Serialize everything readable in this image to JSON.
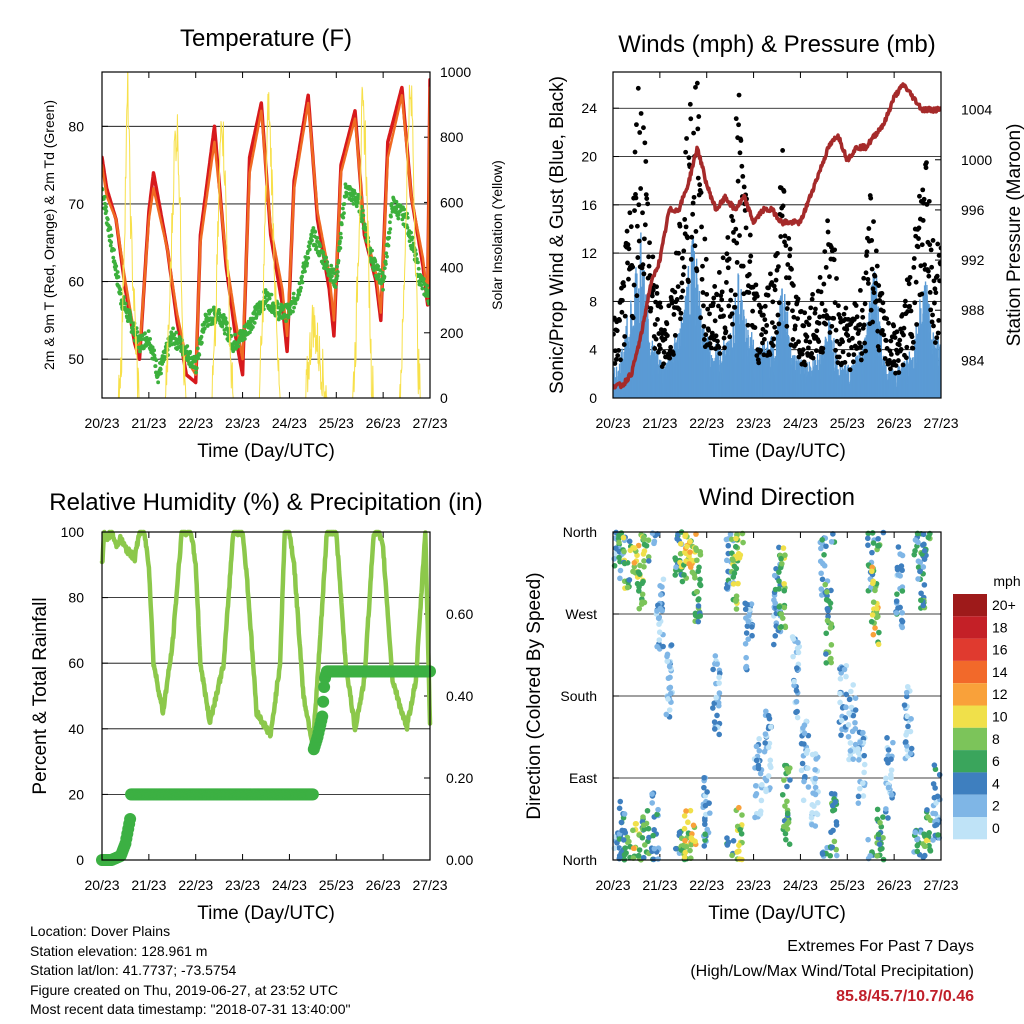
{
  "colors": {
    "red": "#d7191c",
    "orange": "#f06a22",
    "green": "#3cb03c",
    "yellow": "#f7e04a",
    "blue": "#5b9bd5",
    "black": "#000000",
    "maroon": "#a52a2a",
    "rh_green": "#8cc84b",
    "precip_green": "#3cb043",
    "extremes_red": "#c0202a"
  },
  "info": {
    "location": "Location: Dover Plains",
    "elevation": "Station elevation: 128.961 m",
    "latlon": "Station lat/lon: 41.7737; -73.5754",
    "created": "Figure created on Thu, 2019-06-27, at 23:52 UTC",
    "recent": "Most recent data timestamp: \"2018-07-31 13:40:00\""
  },
  "extremes": {
    "title": "Extremes For Past 7 Days",
    "subtitle": "(High/Low/Max Wind/Total Precipitation)",
    "values": "85.8/45.7/10.7/0.46"
  },
  "chart_data": [
    {
      "type": "line",
      "title": "Temperature (F)",
      "xlabel": "Time (Day/UTC)",
      "ylabel": "2m & 9m T (Red, Orange) & 2m Td (Green)",
      "ylabel_right": "Solar Insolation (Yellow)",
      "x_ticks": [
        "20/23",
        "21/23",
        "22/23",
        "23/23",
        "24/23",
        "25/23",
        "26/23",
        "27/23"
      ],
      "xlim": [
        0,
        7
      ],
      "ylim": [
        45,
        87
      ],
      "y_ticks": [
        50,
        60,
        70,
        80
      ],
      "y2lim": [
        0,
        1000
      ],
      "y2_ticks": [
        0,
        200,
        400,
        600,
        800,
        1000
      ],
      "grid": true,
      "series": [
        {
          "name": "2m T",
          "color": "red",
          "x": [
            0,
            0.1,
            0.3,
            0.5,
            0.7,
            0.8,
            1.0,
            1.1,
            1.4,
            1.6,
            1.8,
            2.0,
            2.1,
            2.4,
            2.65,
            2.85,
            3.0,
            3.15,
            3.4,
            3.6,
            3.85,
            3.95,
            4.1,
            4.4,
            4.6,
            4.85,
            4.95,
            5.1,
            5.4,
            5.6,
            5.85,
            5.95,
            6.1,
            6.4,
            6.6,
            6.85,
            6.95,
            7.0
          ],
          "values": [
            76,
            72,
            68,
            59,
            52,
            50,
            69,
            74,
            64,
            55,
            48,
            47,
            66,
            80,
            62,
            53,
            48,
            76,
            83,
            66,
            57,
            51,
            73,
            84,
            68,
            59,
            53,
            75,
            82,
            66,
            60,
            55,
            78,
            85,
            71,
            62,
            57,
            86
          ]
        },
        {
          "name": "9m T",
          "color": "orange",
          "x": [
            0,
            0.1,
            0.3,
            0.5,
            0.7,
            0.8,
            1.0,
            1.1,
            1.4,
            1.6,
            1.8,
            2.0,
            2.1,
            2.4,
            2.65,
            2.85,
            3.0,
            3.15,
            3.4,
            3.6,
            3.85,
            3.95,
            4.1,
            4.4,
            4.6,
            4.85,
            4.95,
            5.1,
            5.4,
            5.6,
            5.85,
            5.95,
            6.1,
            6.4,
            6.6,
            6.85,
            6.95,
            7.0
          ],
          "values": [
            75,
            71,
            68,
            60,
            53,
            51,
            68,
            72,
            64,
            56,
            50,
            48,
            65,
            78,
            63,
            55,
            50,
            74,
            82,
            67,
            59,
            53,
            72,
            83,
            69,
            61,
            55,
            74,
            81,
            67,
            61,
            56,
            76,
            84,
            71,
            63,
            58,
            85
          ]
        },
        {
          "name": "2m Td",
          "color": "green",
          "x": [
            0,
            0.2,
            0.4,
            0.6,
            0.8,
            1.0,
            1.2,
            1.5,
            1.8,
            2.0,
            2.2,
            2.5,
            2.8,
            3.0,
            3.2,
            3.5,
            3.8,
            4.0,
            4.2,
            4.5,
            4.8,
            5.0,
            5.2,
            5.5,
            5.8,
            6.0,
            6.2,
            6.5,
            6.8,
            7.0
          ],
          "values": [
            72,
            65,
            58,
            55,
            52,
            53,
            48,
            53,
            51,
            49,
            55,
            56,
            52,
            53,
            55,
            58,
            56,
            56,
            59,
            66,
            62,
            60,
            72,
            70,
            62,
            60,
            70,
            68,
            60,
            58
          ]
        },
        {
          "name": "Solar Insolation",
          "color": "yellow",
          "axis": "right",
          "x": [
            0,
            0.35,
            0.42,
            0.55,
            0.62,
            0.75,
            0.8,
            1.35,
            1.42,
            1.55,
            1.62,
            1.75,
            1.8,
            2.35,
            2.42,
            2.55,
            2.62,
            2.75,
            2.8,
            3.35,
            3.42,
            3.55,
            3.62,
            3.75,
            3.8,
            4.35,
            4.42,
            4.5,
            4.58,
            4.75,
            4.8,
            5.35,
            5.42,
            5.55,
            5.62,
            5.75,
            5.8,
            6.35,
            6.42,
            6.55,
            6.62,
            6.75,
            6.8,
            7.0
          ],
          "values": [
            0,
            0,
            150,
            960,
            500,
            80,
            0,
            0,
            180,
            780,
            820,
            90,
            0,
            0,
            200,
            900,
            700,
            100,
            0,
            0,
            200,
            920,
            700,
            90,
            0,
            0,
            120,
            240,
            180,
            40,
            0,
            0,
            190,
            880,
            800,
            80,
            0,
            0,
            200,
            910,
            880,
            90,
            0,
            0
          ]
        }
      ]
    },
    {
      "type": "scatter",
      "title": "Winds (mph) & Pressure (mb)",
      "xlabel": "Time (Day/UTC)",
      "ylabel": "Sonic/Prop Wind & Gust (Blue, Black)",
      "ylabel_right": "Station Pressure (Maroon)",
      "x_ticks": [
        "20/23",
        "21/23",
        "22/23",
        "23/23",
        "24/23",
        "25/23",
        "26/23",
        "27/23"
      ],
      "xlim": [
        0,
        7
      ],
      "ylim": [
        0,
        27
      ],
      "y_ticks": [
        0,
        4,
        8,
        12,
        16,
        20,
        24
      ],
      "y2lim": [
        981,
        1007
      ],
      "y2_ticks": [
        984,
        988,
        992,
        996,
        1000,
        1004
      ],
      "grid": true,
      "series": [
        {
          "name": "Gust",
          "color": "black",
          "x": [
            0.1,
            0.2,
            0.3,
            0.4,
            0.5,
            0.6,
            0.7,
            0.8,
            0.9,
            1.1,
            1.2,
            1.5,
            1.6,
            1.7,
            1.8,
            1.9,
            2.1,
            2.5,
            2.6,
            2.7,
            2.8,
            3.1,
            3.5,
            3.6,
            3.7,
            3.8,
            4.1,
            4.5,
            4.6,
            4.7,
            4.8,
            5.1,
            5.4,
            5.5,
            5.6,
            5.7,
            5.8,
            6.1,
            6.4,
            6.5,
            6.6,
            6.7,
            6.8
          ],
          "values": [
            5,
            7,
            10,
            12,
            18,
            23,
            16,
            10,
            7,
            5,
            6,
            12,
            19,
            24,
            20,
            11,
            6,
            10,
            16,
            19,
            13,
            6,
            9,
            16,
            13,
            8,
            5,
            8,
            12,
            10,
            6,
            5,
            8,
            13,
            11,
            7,
            5,
            4,
            9,
            12,
            14,
            20,
            10
          ]
        },
        {
          "name": "Wind",
          "color": "blue",
          "x": [
            0.1,
            0.2,
            0.3,
            0.4,
            0.5,
            0.6,
            0.7,
            0.8,
            0.9,
            1.1,
            1.2,
            1.5,
            1.6,
            1.7,
            1.8,
            1.9,
            2.1,
            2.5,
            2.6,
            2.7,
            2.8,
            3.1,
            3.5,
            3.6,
            3.7,
            3.8,
            4.1,
            4.5,
            4.6,
            4.7,
            4.8,
            5.1,
            5.4,
            5.5,
            5.6,
            5.7,
            5.8,
            6.1,
            6.4,
            6.5,
            6.6,
            6.7,
            6.8
          ],
          "values": [
            2,
            3,
            5,
            6,
            8,
            10,
            7,
            4,
            3,
            2,
            3,
            5,
            8,
            10,
            8,
            5,
            3,
            4,
            6,
            8,
            5,
            3,
            4,
            7,
            6,
            3,
            2,
            3,
            5,
            4,
            2,
            2,
            4,
            7,
            8,
            5,
            2,
            2,
            3,
            5,
            7,
            8,
            4
          ]
        },
        {
          "name": "Pressure",
          "color": "maroon",
          "axis": "right",
          "x": [
            0,
            0.2,
            0.4,
            0.6,
            0.8,
            1.0,
            1.2,
            1.4,
            1.6,
            1.8,
            2.0,
            2.2,
            2.4,
            2.6,
            2.8,
            3.0,
            3.2,
            3.4,
            3.6,
            3.8,
            4.0,
            4.2,
            4.4,
            4.6,
            4.8,
            5.0,
            5.2,
            5.4,
            5.6,
            5.8,
            6.0,
            6.2,
            6.4,
            6.6,
            6.8,
            7.0
          ],
          "values": [
            982,
            982,
            983,
            986,
            990,
            992,
            996,
            996,
            998,
            1001,
            998,
            996,
            997,
            996,
            997,
            995,
            996,
            996,
            995,
            995,
            995,
            997,
            999,
            1001,
            1002,
            1000,
            1001,
            1001,
            1002,
            1003,
            1005,
            1006,
            1005,
            1004,
            1004,
            1004
          ]
        }
      ]
    },
    {
      "type": "line",
      "title": "Relative Humidity (%) & Precipitation (in)",
      "xlabel": "Time (Day/UTC)",
      "ylabel": "Percent & Total Rainfall",
      "x_ticks": [
        "20/23",
        "21/23",
        "22/23",
        "23/23",
        "24/23",
        "25/23",
        "26/23",
        "27/23"
      ],
      "xlim": [
        0,
        7
      ],
      "ylim": [
        0,
        100
      ],
      "y_ticks": [
        0,
        20,
        40,
        60,
        80,
        100
      ],
      "y2lim": [
        0,
        0.8
      ],
      "y2_ticks": [
        "0.00",
        "0.20",
        "0.40",
        "0.60"
      ],
      "grid": true,
      "series": [
        {
          "name": "Relative Humidity",
          "color": "rh_green",
          "x": [
            0,
            0.05,
            0.1,
            0.2,
            0.3,
            0.4,
            0.5,
            0.7,
            0.8,
            0.9,
            1.0,
            1.1,
            1.3,
            1.5,
            1.7,
            1.8,
            1.9,
            2.0,
            2.1,
            2.3,
            2.6,
            2.8,
            2.9,
            3.0,
            3.1,
            3.3,
            3.6,
            3.8,
            3.9,
            4.0,
            4.1,
            4.3,
            4.5,
            4.6,
            4.8,
            4.9,
            5.0,
            5.2,
            5.4,
            5.6,
            5.8,
            5.9,
            6.0,
            6.2,
            6.5,
            6.7,
            6.9,
            7.0
          ],
          "values": [
            90,
            100,
            98,
            100,
            96,
            98,
            95,
            92,
            100,
            100,
            90,
            60,
            45,
            65,
            100,
            100,
            100,
            90,
            60,
            42,
            60,
            100,
            100,
            100,
            85,
            45,
            38,
            60,
            100,
            100,
            90,
            50,
            35,
            55,
            100,
            100,
            100,
            60,
            40,
            55,
            100,
            100,
            95,
            55,
            40,
            55,
            100,
            42
          ]
        },
        {
          "name": "Total Rainfall",
          "color": "precip_green",
          "axis": "right",
          "x": [
            0,
            0.2,
            0.4,
            0.5,
            0.6,
            0.62,
            0.7,
            4.5,
            4.52,
            4.6,
            4.7,
            4.75,
            4.8,
            7.0
          ],
          "values": [
            0.0,
            0.0,
            0.01,
            0.04,
            0.1,
            0.16,
            0.16,
            0.16,
            0.27,
            0.3,
            0.35,
            0.44,
            0.46,
            0.46
          ]
        }
      ]
    },
    {
      "type": "scatter",
      "title": "Wind Direction",
      "xlabel": "Time (Day/UTC)",
      "ylabel": "Direction (Colored By Speed)",
      "x_ticks": [
        "20/23",
        "21/23",
        "22/23",
        "23/23",
        "24/23",
        "25/23",
        "26/23",
        "27/23"
      ],
      "xlim": [
        0,
        7
      ],
      "ylim": [
        0,
        360
      ],
      "y_tick_labels": [
        "North",
        "East",
        "South",
        "West",
        "North"
      ],
      "grid": true,
      "legend": {
        "title": "mph",
        "labels": [
          "20+",
          "18",
          "16",
          "14",
          "12",
          "10",
          "8",
          "6",
          "4",
          "2",
          "0"
        ],
        "colors": [
          "#9e1a1a",
          "#c42027",
          "#e03a2f",
          "#f2692a",
          "#f9a13a",
          "#f0e04a",
          "#7cc45a",
          "#3aa55c",
          "#3e7fbf",
          "#7fb6e6",
          "#bfe3f7"
        ]
      },
      "series": [
        {
          "name": "Direction",
          "x": [
            0.1,
            0.2,
            0.3,
            0.5,
            0.6,
            0.7,
            0.9,
            1.0,
            1.2,
            1.4,
            1.5,
            1.6,
            1.7,
            1.8,
            2.0,
            2.2,
            2.5,
            2.6,
            2.7,
            2.9,
            3.1,
            3.3,
            3.5,
            3.6,
            3.7,
            3.9,
            4.1,
            4.3,
            4.5,
            4.6,
            4.7,
            4.9,
            5.1,
            5.3,
            5.5,
            5.6,
            5.7,
            5.9,
            6.1,
            6.3,
            6.5,
            6.6,
            6.7,
            6.9
          ],
          "values": [
            350,
            20,
            340,
            355,
            320,
            10,
            30,
            270,
            200,
            350,
            340,
            10,
            355,
            300,
            60,
            180,
            340,
            320,
            15,
            250,
            90,
            120,
            280,
            300,
            60,
            200,
            110,
            80,
            330,
            260,
            30,
            180,
            150,
            100,
            340,
            280,
            20,
            90,
            300,
            150,
            350,
            320,
            10,
            60
          ],
          "speeds": [
            3,
            5,
            7,
            9,
            8,
            6,
            4,
            2,
            2,
            5,
            8,
            9,
            10,
            6,
            3,
            2,
            4,
            8,
            9,
            3,
            2,
            2,
            3,
            7,
            6,
            2,
            2,
            1,
            3,
            6,
            5,
            2,
            1,
            2,
            4,
            9,
            6,
            2,
            3,
            2,
            4,
            5,
            7,
            3
          ]
        }
      ]
    }
  ]
}
